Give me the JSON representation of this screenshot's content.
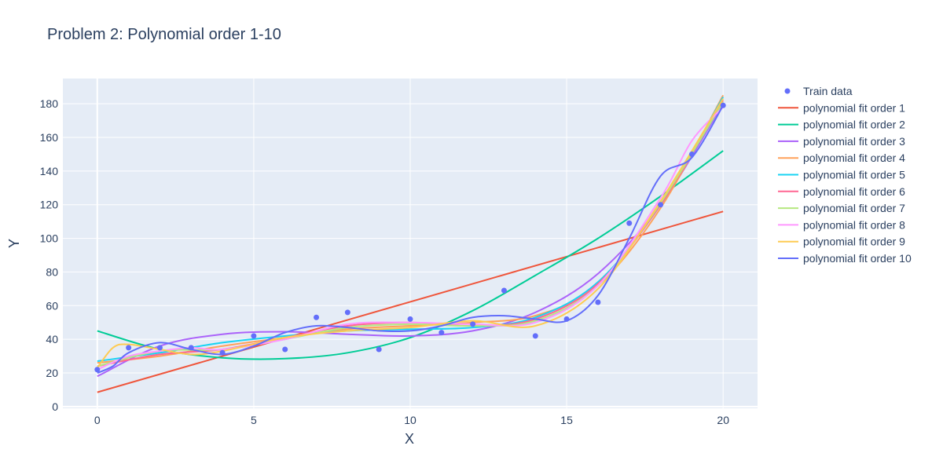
{
  "chart_data": {
    "type": "scatter",
    "title": "Problem 2: Polynomial order 1-10",
    "xlabel": "X",
    "ylabel": "Y",
    "xlim": [
      -1.1,
      21.1
    ],
    "ylim": [
      -1,
      195
    ],
    "x_ticks": [
      0,
      5,
      10,
      15,
      20
    ],
    "y_ticks": [
      0,
      20,
      40,
      60,
      80,
      100,
      120,
      140,
      160,
      180
    ],
    "grid": true,
    "legend_position": "right",
    "background": "#e5ecf6",
    "series": [
      {
        "name": "Train data",
        "mode": "markers",
        "color": "#636efa",
        "x": [
          0,
          1,
          2,
          3,
          4,
          5,
          6,
          7,
          8,
          9,
          10,
          11,
          12,
          13,
          14,
          15,
          16,
          17,
          18,
          19,
          20
        ],
        "y": [
          22,
          35,
          35,
          35,
          32,
          42,
          34,
          53,
          56,
          34,
          52,
          44,
          49,
          69,
          42,
          52,
          62,
          109,
          120,
          150,
          179
        ]
      },
      {
        "name": "polynomial fit order 1",
        "mode": "lines",
        "color": "#ef553b",
        "x": [
          0,
          20
        ],
        "y": [
          8.5,
          116
        ]
      },
      {
        "name": "polynomial fit order 2",
        "mode": "lines",
        "color": "#00cc96",
        "x": [
          0,
          2,
          4,
          6,
          8,
          10,
          12,
          14,
          16,
          18,
          20
        ],
        "y": [
          45,
          34,
          29,
          28.5,
          32,
          41,
          57,
          78,
          100,
          125,
          152
        ]
      },
      {
        "name": "polynomial fit order 3",
        "mode": "lines",
        "color": "#ab63fa",
        "x": [
          0,
          2,
          4,
          6,
          8,
          10,
          12,
          14,
          16,
          18,
          20
        ],
        "y": [
          18,
          36,
          43,
          44.5,
          43,
          42,
          45,
          56,
          79,
          120,
          180
        ]
      },
      {
        "name": "polynomial fit order 4",
        "mode": "lines",
        "color": "#ffa15a",
        "x": [
          0,
          2,
          4,
          6,
          8,
          10,
          12,
          14,
          16,
          18,
          20
        ],
        "y": [
          26,
          30,
          36,
          41,
          46,
          48,
          50,
          54,
          72,
          118,
          185
        ]
      },
      {
        "name": "polynomial fit order 5",
        "mode": "lines",
        "color": "#19d3f3",
        "x": [
          0,
          2,
          4,
          6,
          8,
          10,
          12,
          14,
          16,
          18,
          20
        ],
        "y": [
          27,
          32,
          38,
          42,
          45,
          46,
          47,
          53,
          74,
          120,
          184
        ]
      },
      {
        "name": "polynomial fit order 6",
        "mode": "lines",
        "color": "#ff6692",
        "x": [
          0,
          2,
          4,
          6,
          8,
          10,
          12,
          14,
          16,
          18,
          20
        ],
        "y": [
          24,
          31,
          34,
          41,
          48,
          50,
          48,
          52,
          73,
          120,
          182
        ]
      },
      {
        "name": "polynomial fit order 7",
        "mode": "lines",
        "color": "#b6e880",
        "x": [
          0,
          2,
          4,
          6,
          8,
          10,
          12,
          14,
          16,
          18,
          20
        ],
        "y": [
          24,
          33,
          34,
          40,
          47,
          49,
          48,
          51,
          72,
          121,
          181
        ]
      },
      {
        "name": "polynomial fit order 8",
        "mode": "lines",
        "color": "#ff97ff",
        "x": [
          0,
          1,
          2,
          3,
          4,
          6,
          8,
          10,
          12,
          14,
          16,
          18,
          19,
          20
        ],
        "y": [
          22,
          30,
          33,
          35,
          34,
          40,
          49,
          50,
          49,
          50,
          72,
          124,
          158,
          178
        ]
      },
      {
        "name": "polynomial fit order 9",
        "mode": "lines",
        "color": "#fecb52",
        "x": [
          0,
          0.5,
          1,
          2,
          3,
          4,
          6,
          8,
          10,
          12,
          14,
          16,
          18,
          20
        ],
        "y": [
          23,
          35,
          37,
          34,
          31,
          33,
          41,
          45,
          47,
          51,
          48,
          70,
          122,
          183
        ]
      },
      {
        "name": "polynomial fit order 10",
        "mode": "lines",
        "color": "#636efa",
        "x": [
          0,
          0.5,
          1,
          2,
          3,
          4,
          5,
          6,
          7,
          8,
          9,
          10,
          11,
          12,
          13,
          14,
          15,
          16,
          17,
          18,
          19,
          20
        ],
        "y": [
          20,
          24,
          32,
          38,
          34,
          31,
          36,
          44,
          48,
          47,
          45,
          45,
          48,
          53,
          54,
          52,
          51,
          66,
          100,
          137,
          148,
          179
        ]
      }
    ]
  }
}
